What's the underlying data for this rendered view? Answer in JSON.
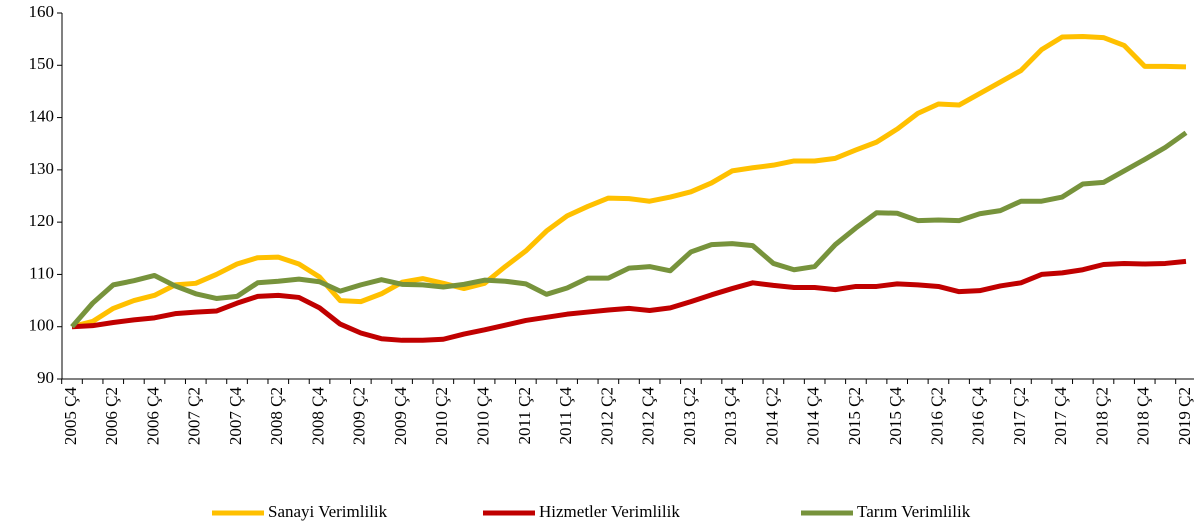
{
  "chart_data": {
    "type": "line",
    "categories": [
      "2005 Ç4",
      null,
      "2006 Ç2",
      null,
      "2006 Ç4",
      null,
      "2007 Ç2",
      null,
      "2007 Ç4",
      null,
      "2008 Ç2",
      null,
      "2008 Ç4",
      null,
      "2009 Ç2",
      null,
      "2009 Ç4",
      null,
      "2010 Ç2",
      null,
      "2010 Ç4",
      null,
      "2011 Ç2",
      null,
      "2011 Ç4",
      null,
      "2012 Ç2",
      null,
      "2012 Ç4",
      null,
      "2013 Ç2",
      null,
      "2013 Ç4",
      null,
      "2014 Ç2",
      null,
      "2014 Ç4",
      null,
      "2015 Ç2",
      null,
      "2015 Ç4",
      null,
      "2016 Ç2",
      null,
      "2016 Ç4",
      null,
      "2017 Ç2",
      null,
      "2017 Ç4",
      null,
      "2018 Ç2",
      null,
      "2018 Ç4",
      null,
      "2019 Ç2"
    ],
    "series": [
      {
        "name": "Sanayi Verimlilik",
        "color": "#ffc000",
        "values": [
          100,
          101,
          103.5,
          105,
          106,
          108,
          108.3,
          110,
          112,
          113.2,
          113.3,
          112,
          109.5,
          105,
          104.8,
          106.3,
          108.5,
          109.2,
          108.3,
          107.3,
          108.3,
          111.5,
          114.5,
          118.3,
          121.2,
          123,
          124.6,
          124.5,
          124,
          124.8,
          125.8,
          127.5,
          129.8,
          130.4,
          130.9,
          131.7,
          131.7,
          132.2,
          133.8,
          135.3,
          137.8,
          140.8,
          142.6,
          142.4,
          144.6,
          146.8,
          149,
          153,
          155.4,
          155.5,
          155.3,
          153.8,
          149.8,
          149.8,
          149.7
        ]
      },
      {
        "name": "Hizmetler Verimlilik",
        "color": "#c00000",
        "values": [
          100,
          100.2,
          100.8,
          101.3,
          101.7,
          102.5,
          102.8,
          103,
          104.5,
          105.8,
          106,
          105.6,
          103.6,
          100.5,
          98.8,
          97.7,
          97.4,
          97.4,
          97.6,
          98.6,
          99.4,
          100.3,
          101.2,
          101.8,
          102.4,
          102.8,
          103.2,
          103.5,
          103.1,
          103.6,
          104.8,
          106.1,
          107.3,
          108.4,
          107.9,
          107.5,
          107.5,
          107.1,
          107.7,
          107.7,
          108.2,
          108,
          107.7,
          106.7,
          106.9,
          107.8,
          108.4,
          110,
          110.3,
          110.9,
          111.9,
          112.1,
          112,
          112.1,
          112.5
        ]
      },
      {
        "name": "Tarım Verimlilik",
        "color": "#77933c",
        "values": [
          100,
          104.5,
          108,
          108.8,
          109.8,
          107.8,
          106.3,
          105.4,
          105.8,
          108.4,
          108.7,
          109.1,
          108.6,
          106.8,
          108,
          109,
          108.1,
          108,
          107.6,
          108.1,
          108.9,
          108.7,
          108.2,
          106.2,
          107.4,
          109.3,
          109.3,
          111.2,
          111.5,
          110.7,
          114.3,
          115.7,
          115.9,
          115.5,
          112.1,
          110.9,
          111.5,
          115.7,
          118.9,
          121.8,
          121.7,
          120.3,
          120.4,
          120.3,
          121.6,
          122.2,
          124,
          124,
          124.8,
          127.3,
          127.6,
          129.8,
          132,
          134.3,
          137.1
        ]
      }
    ],
    "ylim": [
      90,
      160
    ],
    "yticks": [
      90,
      100,
      110,
      120,
      130,
      140,
      150,
      160
    ],
    "grid": false,
    "legend": "bottom"
  }
}
